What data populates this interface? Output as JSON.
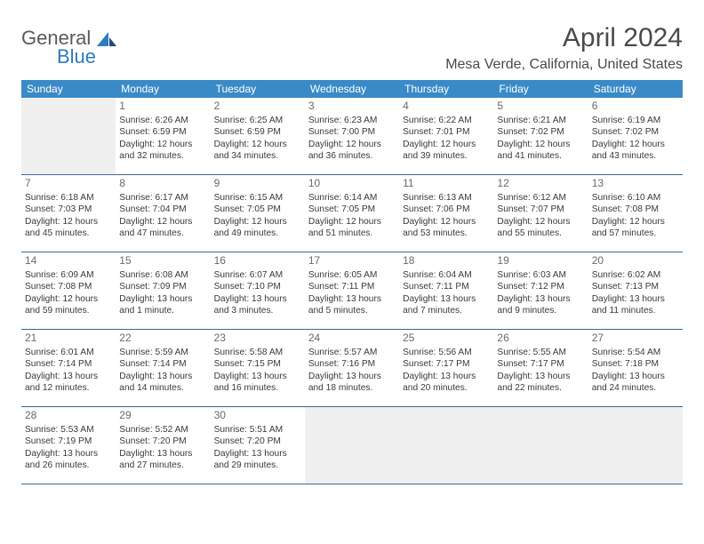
{
  "logo": {
    "line1": "General",
    "line2": "Blue"
  },
  "title": "April 2024",
  "location": "Mesa Verde, California, United States",
  "colors": {
    "header_bg": "#3a8ac8",
    "header_text": "#ffffff",
    "border": "#3a6a92",
    "daynum": "#6b6b6b",
    "body_text": "#3a3a3a",
    "empty_bg": "#f0f0f0",
    "logo_gray": "#5b5b5b",
    "logo_blue": "#2f7bbf",
    "title_color": "#4a4a4a"
  },
  "dow": [
    "Sunday",
    "Monday",
    "Tuesday",
    "Wednesday",
    "Thursday",
    "Friday",
    "Saturday"
  ],
  "weeks": [
    [
      {
        "empty": true
      },
      {
        "n": "1",
        "sr": "6:26 AM",
        "ss": "6:59 PM",
        "dl": "12 hours and 32 minutes."
      },
      {
        "n": "2",
        "sr": "6:25 AM",
        "ss": "6:59 PM",
        "dl": "12 hours and 34 minutes."
      },
      {
        "n": "3",
        "sr": "6:23 AM",
        "ss": "7:00 PM",
        "dl": "12 hours and 36 minutes."
      },
      {
        "n": "4",
        "sr": "6:22 AM",
        "ss": "7:01 PM",
        "dl": "12 hours and 39 minutes."
      },
      {
        "n": "5",
        "sr": "6:21 AM",
        "ss": "7:02 PM",
        "dl": "12 hours and 41 minutes."
      },
      {
        "n": "6",
        "sr": "6:19 AM",
        "ss": "7:02 PM",
        "dl": "12 hours and 43 minutes."
      }
    ],
    [
      {
        "n": "7",
        "sr": "6:18 AM",
        "ss": "7:03 PM",
        "dl": "12 hours and 45 minutes."
      },
      {
        "n": "8",
        "sr": "6:17 AM",
        "ss": "7:04 PM",
        "dl": "12 hours and 47 minutes."
      },
      {
        "n": "9",
        "sr": "6:15 AM",
        "ss": "7:05 PM",
        "dl": "12 hours and 49 minutes."
      },
      {
        "n": "10",
        "sr": "6:14 AM",
        "ss": "7:05 PM",
        "dl": "12 hours and 51 minutes."
      },
      {
        "n": "11",
        "sr": "6:13 AM",
        "ss": "7:06 PM",
        "dl": "12 hours and 53 minutes."
      },
      {
        "n": "12",
        "sr": "6:12 AM",
        "ss": "7:07 PM",
        "dl": "12 hours and 55 minutes."
      },
      {
        "n": "13",
        "sr": "6:10 AM",
        "ss": "7:08 PM",
        "dl": "12 hours and 57 minutes."
      }
    ],
    [
      {
        "n": "14",
        "sr": "6:09 AM",
        "ss": "7:08 PM",
        "dl": "12 hours and 59 minutes."
      },
      {
        "n": "15",
        "sr": "6:08 AM",
        "ss": "7:09 PM",
        "dl": "13 hours and 1 minute."
      },
      {
        "n": "16",
        "sr": "6:07 AM",
        "ss": "7:10 PM",
        "dl": "13 hours and 3 minutes."
      },
      {
        "n": "17",
        "sr": "6:05 AM",
        "ss": "7:11 PM",
        "dl": "13 hours and 5 minutes."
      },
      {
        "n": "18",
        "sr": "6:04 AM",
        "ss": "7:11 PM",
        "dl": "13 hours and 7 minutes."
      },
      {
        "n": "19",
        "sr": "6:03 AM",
        "ss": "7:12 PM",
        "dl": "13 hours and 9 minutes."
      },
      {
        "n": "20",
        "sr": "6:02 AM",
        "ss": "7:13 PM",
        "dl": "13 hours and 11 minutes."
      }
    ],
    [
      {
        "n": "21",
        "sr": "6:01 AM",
        "ss": "7:14 PM",
        "dl": "13 hours and 12 minutes."
      },
      {
        "n": "22",
        "sr": "5:59 AM",
        "ss": "7:14 PM",
        "dl": "13 hours and 14 minutes."
      },
      {
        "n": "23",
        "sr": "5:58 AM",
        "ss": "7:15 PM",
        "dl": "13 hours and 16 minutes."
      },
      {
        "n": "24",
        "sr": "5:57 AM",
        "ss": "7:16 PM",
        "dl": "13 hours and 18 minutes."
      },
      {
        "n": "25",
        "sr": "5:56 AM",
        "ss": "7:17 PM",
        "dl": "13 hours and 20 minutes."
      },
      {
        "n": "26",
        "sr": "5:55 AM",
        "ss": "7:17 PM",
        "dl": "13 hours and 22 minutes."
      },
      {
        "n": "27",
        "sr": "5:54 AM",
        "ss": "7:18 PM",
        "dl": "13 hours and 24 minutes."
      }
    ],
    [
      {
        "n": "28",
        "sr": "5:53 AM",
        "ss": "7:19 PM",
        "dl": "13 hours and 26 minutes."
      },
      {
        "n": "29",
        "sr": "5:52 AM",
        "ss": "7:20 PM",
        "dl": "13 hours and 27 minutes."
      },
      {
        "n": "30",
        "sr": "5:51 AM",
        "ss": "7:20 PM",
        "dl": "13 hours and 29 minutes."
      },
      {
        "empty": true
      },
      {
        "empty": true
      },
      {
        "empty": true
      },
      {
        "empty": true
      }
    ]
  ],
  "labels": {
    "sunrise": "Sunrise:",
    "sunset": "Sunset:",
    "daylight": "Daylight:"
  }
}
